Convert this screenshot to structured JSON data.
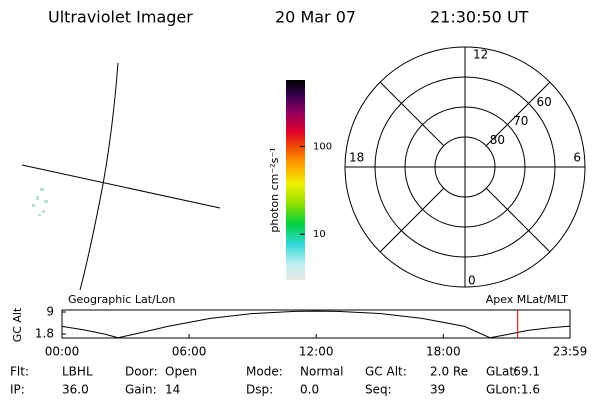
{
  "header": {
    "instrument": "Ultraviolet Imager",
    "date": "20 Mar 07",
    "time": "21:30:50 UT"
  },
  "image_panel": {
    "label": "Geographic Lat/Lon"
  },
  "colorbar": {
    "label": "photon cm⁻²s⁻¹",
    "log": true,
    "lim": [
      3,
      575
    ],
    "ticks": [
      10,
      100
    ]
  },
  "polar": {
    "label": "Apex MLat/MLT",
    "rlim": [
      90,
      50
    ],
    "rticks": [
      80,
      70,
      60
    ],
    "mlt_labels": {
      "top": 12,
      "left": 18,
      "right": 6,
      "bottom": 0
    }
  },
  "chart_data": {
    "type": "line",
    "ylabel": "GC Alt",
    "x": [
      0,
      1,
      2,
      2.65,
      3.5,
      5,
      7,
      9,
      11,
      12,
      13,
      15,
      17,
      19,
      20.2,
      21,
      22,
      23,
      23.98
    ],
    "series": [
      {
        "color": "#000000",
        "values": [
          4.3,
          3.2,
          1.8,
          0.6,
          1.9,
          4.3,
          6.9,
          8.5,
          9.2,
          9.3,
          9.2,
          8.5,
          6.9,
          4.3,
          0.6,
          1.6,
          3.0,
          3.8,
          4.4
        ]
      }
    ],
    "xlim": [
      0,
      23.98
    ],
    "xticks": [
      {
        "value": 0,
        "label": "00:00"
      },
      {
        "value": 6,
        "label": "06:00"
      },
      {
        "value": 12,
        "label": "12:00"
      },
      {
        "value": 18,
        "label": "18:00"
      },
      {
        "value": 23.98,
        "label": "23:59"
      }
    ],
    "ylim": [
      0.5,
      9.65
    ],
    "yticks": [
      1.8,
      9.0
    ],
    "marker_x": 21.51,
    "marker_color": "#cc0000"
  },
  "info": [
    [
      {
        "label": "Flt:",
        "value": "LBHL"
      },
      {
        "label": "Door:",
        "value": "Open"
      },
      {
        "label": "Mode:",
        "value": "Normal"
      },
      {
        "label": "GC Alt:",
        "value": "2.0 Re"
      },
      {
        "label": "GLat:",
        "value": "69.1"
      }
    ],
    [
      {
        "label": "IP:",
        "value": "36.0"
      },
      {
        "label": "Gain:",
        "value": "14"
      },
      {
        "label": "Dsp:",
        "value": "0.0"
      },
      {
        "label": "Seq:",
        "value": "39"
      },
      {
        "label": "GLon:",
        "value": "1.6"
      }
    ]
  ]
}
